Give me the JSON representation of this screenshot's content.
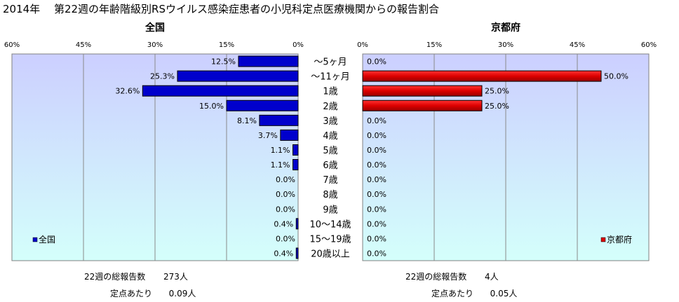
{
  "title": "2014年　 第22週の年齢階級別RSウイルス感染症患者の小児科定点医療機関からの報告割合",
  "chart_data": [
    {
      "type": "bar",
      "orientation": "horizontal",
      "direction": "reversed",
      "title": "全国",
      "categories": [
        "〜5ヶ月",
        "〜11ヶ月",
        "1歳",
        "2歳",
        "3歳",
        "4歳",
        "5歳",
        "6歳",
        "7歳",
        "8歳",
        "9歳",
        "10〜14歳",
        "15〜19歳",
        "20歳以上"
      ],
      "series": [
        {
          "name": "全国",
          "values": [
            12.5,
            25.3,
            32.6,
            15.0,
            8.1,
            3.7,
            1.1,
            1.1,
            0.0,
            0.0,
            0.0,
            0.4,
            0.0,
            0.4
          ]
        }
      ],
      "data_labels": [
        "12.5%",
        "25.3%",
        "32.6%",
        "15.0%",
        "8.1%",
        "3.7%",
        "1.1%",
        "1.1%",
        "0.0%",
        "0.0%",
        "0.0%",
        "0.4%",
        "0.0%",
        "0.4%"
      ],
      "xlim": [
        0,
        60
      ],
      "xticks": [
        "60%",
        "45%",
        "30%",
        "15%",
        "0%"
      ],
      "grid": true,
      "legend_position": "bottom-left",
      "color": "#0000cc"
    },
    {
      "type": "bar",
      "orientation": "horizontal",
      "title": "京都府",
      "categories": [
        "〜5ヶ月",
        "〜11ヶ月",
        "1歳",
        "2歳",
        "3歳",
        "4歳",
        "5歳",
        "6歳",
        "7歳",
        "8歳",
        "9歳",
        "10〜14歳",
        "15〜19歳",
        "20歳以上"
      ],
      "series": [
        {
          "name": "京都府",
          "values": [
            0.0,
            50.0,
            25.0,
            25.0,
            0.0,
            0.0,
            0.0,
            0.0,
            0.0,
            0.0,
            0.0,
            0.0,
            0.0,
            0.0
          ]
        }
      ],
      "data_labels": [
        "0.0%",
        "50.0%",
        "25.0%",
        "25.0%",
        "0.0%",
        "0.0%",
        "0.0%",
        "0.0%",
        "0.0%",
        "0.0%",
        "0.0%",
        "0.0%",
        "0.0%",
        "0.0%"
      ],
      "xlim": [
        0,
        60
      ],
      "xticks": [
        "0%",
        "15%",
        "30%",
        "45%",
        "60%"
      ],
      "grid": true,
      "legend_position": "bottom-right",
      "color": "#dd0000"
    }
  ],
  "footer": {
    "national": {
      "total_label": "22週の総報告数",
      "total_value": "273人",
      "per_label": "定点あたり",
      "per_value": "0.09人"
    },
    "kyoto": {
      "total_label": "22週の総報告数",
      "total_value": "4人",
      "per_label": "定点あたり",
      "per_value": "0.05人"
    }
  }
}
